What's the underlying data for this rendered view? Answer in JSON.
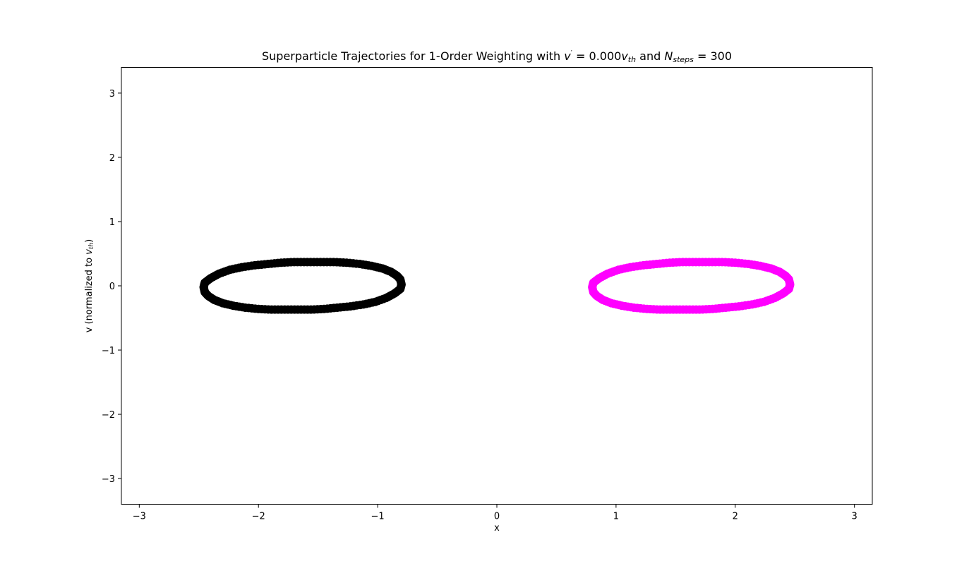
{
  "chart_data": {
    "type": "scatter",
    "title": {
      "prefix": "Superparticle Trajectories for 1-Order Weighting with ",
      "v_symbol": "v",
      "prime": "′",
      "equals_value": " = 0.000",
      "vth_symbol": "v",
      "vth_sub": "th",
      "and_text": " and ",
      "n_symbol": "N",
      "n_sub": "steps",
      "n_value": " = 300"
    },
    "xlabel": "x",
    "ylabel": {
      "prefix": "v (normalized to ",
      "symbol": "v",
      "sub": "th",
      "suffix": ")"
    },
    "xlim": [
      -3.15,
      3.15
    ],
    "ylim": [
      -3.4,
      3.4
    ],
    "xticks": [
      -3,
      -2,
      -1,
      0,
      1,
      2,
      3
    ],
    "xtick_labels": [
      "−3",
      "−2",
      "−1",
      "0",
      "1",
      "2",
      "3"
    ],
    "yticks": [
      -3,
      -2,
      -1,
      0,
      1,
      2,
      3
    ],
    "ytick_labels": [
      "−3",
      "−2",
      "−1",
      "0",
      "1",
      "2",
      "3"
    ],
    "grid": false,
    "series": [
      {
        "color": "#000000",
        "marker": "circle",
        "points": [
          [
            -0.8,
            0.02
          ],
          [
            -0.81,
            0.1
          ],
          [
            -0.84,
            0.16
          ],
          [
            -0.89,
            0.22
          ],
          [
            -0.96,
            0.27
          ],
          [
            -1.05,
            0.31
          ],
          [
            -1.15,
            0.34
          ],
          [
            -1.26,
            0.36
          ],
          [
            -1.37,
            0.37
          ],
          [
            -1.48,
            0.37
          ],
          [
            -1.59,
            0.37
          ],
          [
            -1.7,
            0.37
          ],
          [
            -1.81,
            0.36
          ],
          [
            -1.92,
            0.34
          ],
          [
            -2.03,
            0.32
          ],
          [
            -2.14,
            0.29
          ],
          [
            -2.24,
            0.25
          ],
          [
            -2.33,
            0.19
          ],
          [
            -2.4,
            0.12
          ],
          [
            -2.45,
            0.05
          ],
          [
            -2.46,
            -0.02
          ],
          [
            -2.45,
            -0.1
          ],
          [
            -2.42,
            -0.16
          ],
          [
            -2.37,
            -0.22
          ],
          [
            -2.3,
            -0.27
          ],
          [
            -2.21,
            -0.31
          ],
          [
            -2.11,
            -0.34
          ],
          [
            -2.0,
            -0.36
          ],
          [
            -1.89,
            -0.37
          ],
          [
            -1.78,
            -0.37
          ],
          [
            -1.67,
            -0.37
          ],
          [
            -1.56,
            -0.37
          ],
          [
            -1.45,
            -0.36
          ],
          [
            -1.34,
            -0.34
          ],
          [
            -1.23,
            -0.32
          ],
          [
            -1.12,
            -0.29
          ],
          [
            -1.02,
            -0.25
          ],
          [
            -0.93,
            -0.19
          ],
          [
            -0.86,
            -0.12
          ],
          [
            -0.81,
            -0.05
          ]
        ]
      },
      {
        "color": "#ff00ff",
        "marker": "circle",
        "points": [
          [
            2.46,
            0.02
          ],
          [
            2.45,
            0.1
          ],
          [
            2.42,
            0.16
          ],
          [
            2.37,
            0.22
          ],
          [
            2.3,
            0.27
          ],
          [
            2.21,
            0.31
          ],
          [
            2.11,
            0.34
          ],
          [
            2.0,
            0.36
          ],
          [
            1.89,
            0.37
          ],
          [
            1.78,
            0.37
          ],
          [
            1.67,
            0.37
          ],
          [
            1.56,
            0.37
          ],
          [
            1.45,
            0.36
          ],
          [
            1.34,
            0.34
          ],
          [
            1.23,
            0.32
          ],
          [
            1.12,
            0.29
          ],
          [
            1.02,
            0.25
          ],
          [
            0.93,
            0.19
          ],
          [
            0.86,
            0.12
          ],
          [
            0.81,
            0.05
          ],
          [
            0.8,
            -0.02
          ],
          [
            0.81,
            -0.1
          ],
          [
            0.84,
            -0.16
          ],
          [
            0.89,
            -0.22
          ],
          [
            0.96,
            -0.27
          ],
          [
            1.05,
            -0.31
          ],
          [
            1.15,
            -0.34
          ],
          [
            1.26,
            -0.36
          ],
          [
            1.37,
            -0.37
          ],
          [
            1.48,
            -0.37
          ],
          [
            1.59,
            -0.37
          ],
          [
            1.7,
            -0.37
          ],
          [
            1.81,
            -0.36
          ],
          [
            1.92,
            -0.34
          ],
          [
            2.03,
            -0.32
          ],
          [
            2.14,
            -0.29
          ],
          [
            2.24,
            -0.25
          ],
          [
            2.33,
            -0.19
          ],
          [
            2.4,
            -0.12
          ],
          [
            2.45,
            -0.05
          ]
        ]
      }
    ]
  }
}
